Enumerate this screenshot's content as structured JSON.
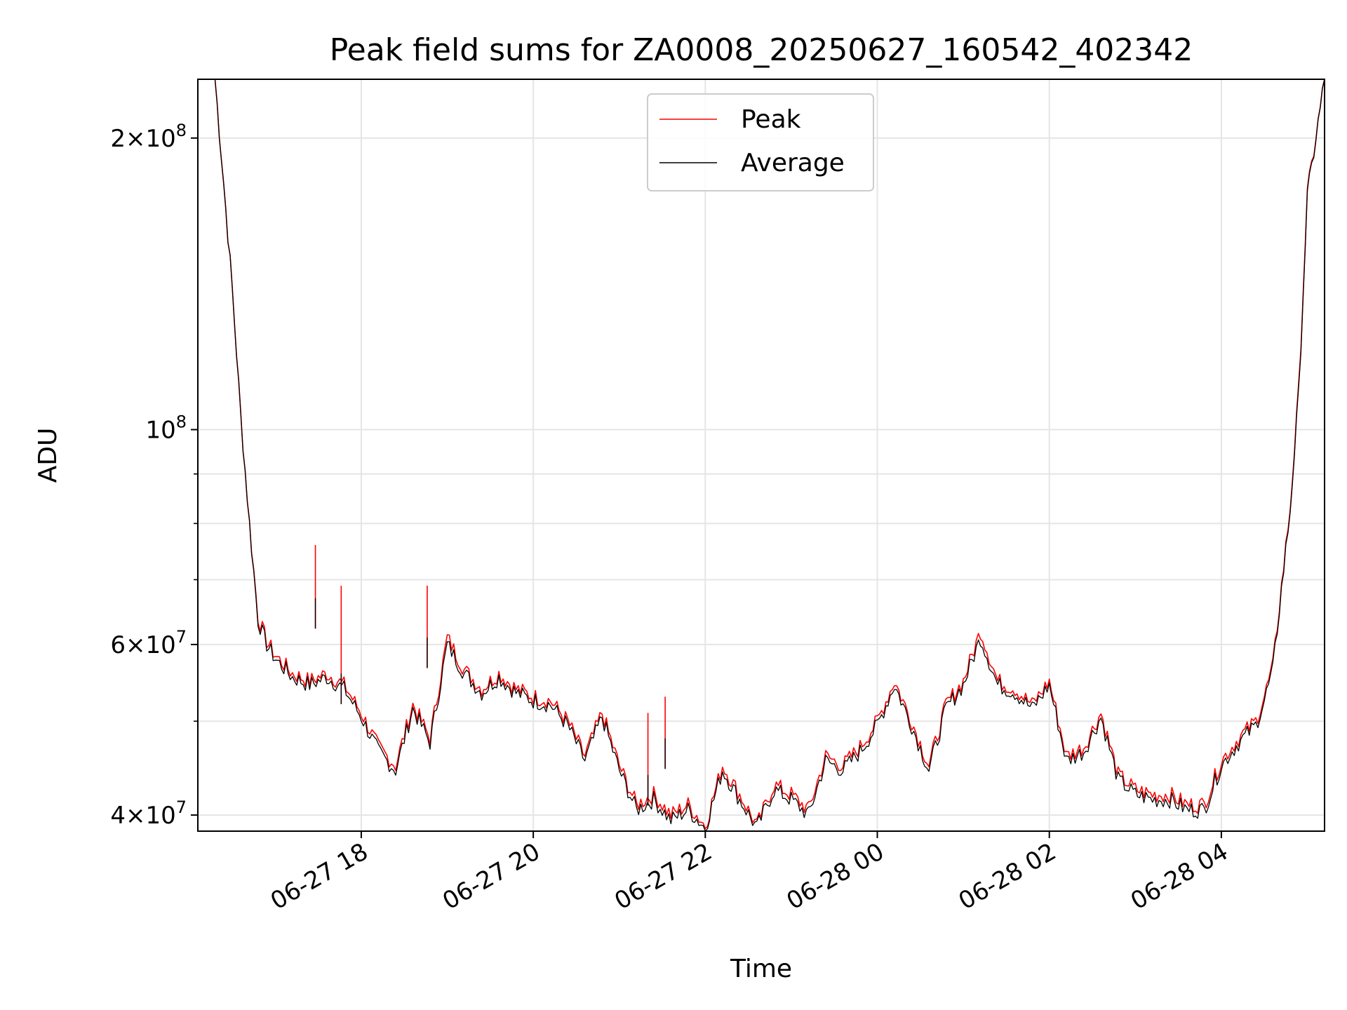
{
  "chart_data": {
    "type": "line",
    "title": "Peak field sums for ZA0008_20250627_160542_402342",
    "xlabel": "Time",
    "ylabel": "ADU",
    "yscale": "log",
    "xlim": [
      "06-27 16:06",
      "06-28 05:12"
    ],
    "ylim": [
      38500000,
      230000000
    ],
    "grid": true,
    "legend": {
      "placement": "top-center",
      "entries": [
        "Peak",
        "Average"
      ]
    },
    "x_ticks": [
      "06-27 18",
      "06-27 20",
      "06-27 22",
      "06-28 00",
      "06-28 02",
      "06-28 04"
    ],
    "y_major_ticks": [
      {
        "value": 40000000,
        "mantissa": "4",
        "exponent": "7"
      },
      {
        "value": 60000000,
        "mantissa": "6",
        "exponent": "7"
      },
      {
        "value": 100000000,
        "mantissa": "",
        "exponent": "8"
      },
      {
        "value": 200000000,
        "mantissa": "2",
        "exponent": "8"
      }
    ],
    "y_minor_ticks": [
      50000000,
      70000000,
      80000000,
      90000000
    ],
    "x": [
      "06-27 16:06",
      "06-27 16:18",
      "06-27 16:24",
      "06-27 16:30",
      "06-27 16:36",
      "06-27 16:42",
      "06-27 16:48",
      "06-27 16:54",
      "06-27 17:00",
      "06-27 17:12",
      "06-27 17:24",
      "06-27 17:36",
      "06-27 17:48",
      "06-27 18:00",
      "06-27 18:12",
      "06-27 18:24",
      "06-27 18:36",
      "06-27 18:48",
      "06-27 19:00",
      "06-27 19:12",
      "06-27 19:24",
      "06-27 19:36",
      "06-27 19:48",
      "06-27 20:00",
      "06-27 20:12",
      "06-27 20:24",
      "06-27 20:36",
      "06-27 20:48",
      "06-27 21:00",
      "06-27 21:12",
      "06-27 21:24",
      "06-27 21:36",
      "06-27 21:48",
      "06-27 22:00",
      "06-27 22:12",
      "06-27 22:24",
      "06-27 22:36",
      "06-27 22:48",
      "06-27 23:00",
      "06-27 23:12",
      "06-27 23:24",
      "06-27 23:36",
      "06-27 23:48",
      "06-28 00:00",
      "06-28 00:12",
      "06-28 00:24",
      "06-28 00:36",
      "06-28 00:48",
      "06-28 01:00",
      "06-28 01:12",
      "06-28 01:24",
      "06-28 01:36",
      "06-28 01:48",
      "06-28 02:00",
      "06-28 02:12",
      "06-28 02:24",
      "06-28 02:36",
      "06-28 02:48",
      "06-28 03:00",
      "06-28 03:12",
      "06-28 03:24",
      "06-28 03:36",
      "06-28 03:48",
      "06-28 04:00",
      "06-28 04:12",
      "06-28 04:24",
      "06-28 04:30",
      "06-28 04:36",
      "06-28 04:42",
      "06-28 04:48",
      "06-28 04:54",
      "06-28 05:00",
      "06-28 05:12"
    ],
    "series": [
      {
        "name": "Peak",
        "color": "#ff0000",
        "values": [
          230000000,
          230000000,
          180000000,
          140000000,
          103000000,
          80000000,
          64000000,
          60500000,
          58500000,
          56000000,
          55000000,
          56000000,
          54500000,
          51000000,
          47000000,
          45000000,
          52000000,
          48000000,
          61000000,
          56500000,
          54000000,
          56000000,
          54000000,
          53000000,
          52500000,
          50000000,
          46000000,
          51000000,
          45000000,
          41000000,
          42000000,
          40000000,
          41000000,
          39000000,
          45000000,
          42000000,
          39000000,
          43000000,
          42000000,
          40500000,
          46000000,
          45000000,
          47000000,
          50000000,
          55000000,
          50000000,
          45000000,
          52000000,
          55000000,
          62000000,
          55000000,
          54000000,
          52000000,
          55000000,
          46000000,
          47000000,
          51000000,
          44000000,
          42500000,
          42000000,
          42000000,
          41000000,
          41000000,
          45500000,
          48000000,
          50000000,
          53000000,
          57000000,
          69000000,
          83000000,
          110000000,
          175000000,
          230000000
        ]
      },
      {
        "name": "Average",
        "color": "#000000",
        "values": [
          230000000,
          230000000,
          180000000,
          140000000,
          103000000,
          80000000,
          63500000,
          60000000,
          58000000,
          55500000,
          54500000,
          55500000,
          54000000,
          50500000,
          46500000,
          44500000,
          51500000,
          47500000,
          60000000,
          56000000,
          53500000,
          55500000,
          53500000,
          52500000,
          52000000,
          49500000,
          45500000,
          50500000,
          44500000,
          40500000,
          41500000,
          39500000,
          40500000,
          38800000,
          44500000,
          41500000,
          38800000,
          42500000,
          41500000,
          40000000,
          45500000,
          44500000,
          46500000,
          49500000,
          54500000,
          49500000,
          44500000,
          51500000,
          54500000,
          61000000,
          54500000,
          53500000,
          51500000,
          54500000,
          45500000,
          46500000,
          50500000,
          43500000,
          42000000,
          41500000,
          41500000,
          40500000,
          40500000,
          45000000,
          47500000,
          49500000,
          52500000,
          56500000,
          68500000,
          82500000,
          109000000,
          174000000,
          230000000
        ]
      }
    ],
    "spikes": [
      {
        "x": "06-27 17:28",
        "peak": 76000000,
        "average": 67000000
      },
      {
        "x": "06-27 17:46",
        "peak": 69000000,
        "average": 56000000
      },
      {
        "x": "06-27 18:46",
        "peak": 69000000,
        "average": 61000000
      },
      {
        "x": "06-27 21:20",
        "peak": 51000000,
        "average": 44000000
      },
      {
        "x": "06-27 21:32",
        "peak": 53000000,
        "average": 48000000
      }
    ]
  }
}
